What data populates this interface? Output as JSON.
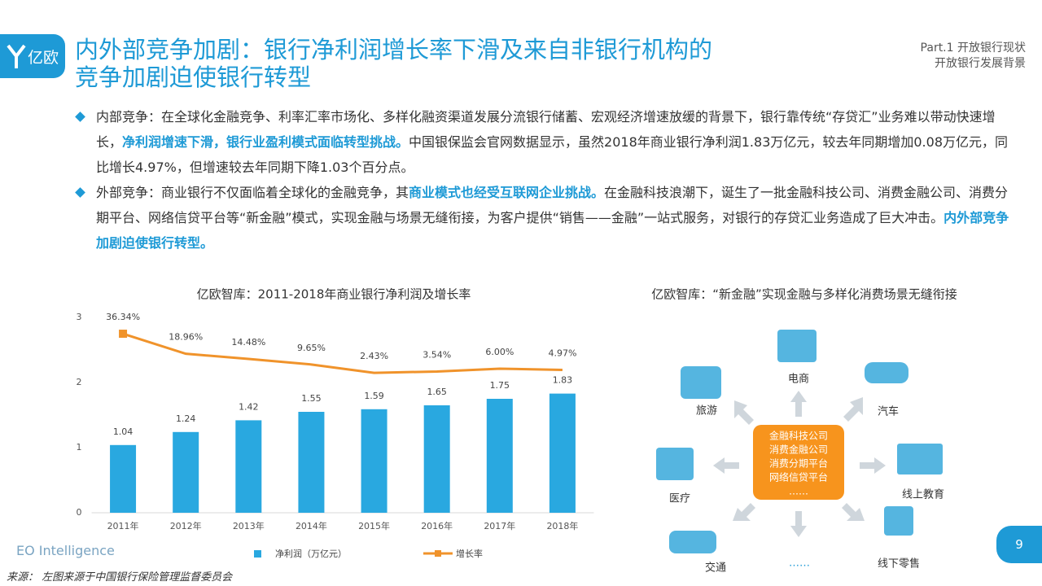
{
  "header": {
    "logo": "亿欧",
    "title_lines": [
      "内外部竞争加剧：银行净利润增长率下滑及来自非银行机构的",
      "竞争加剧迫使银行转型"
    ],
    "section_lines": [
      "Part.1 开放银行现状",
      "开放银行发展背景"
    ]
  },
  "bullets": [
    {
      "segments": [
        {
          "text": "内部竞争：在全球化金融竞争、利率汇率市场化、多样化融资渠道发展分流银行储蓄、宏观经济增速放缓的背景下，银行靠传统“存贷汇”业务难以带动快速增长，",
          "em": false
        },
        {
          "text": "净利润增速下滑，银行业盈利模式面临转型挑战。",
          "em": true
        },
        {
          "text": "中国银保监会官网数据显示，虽然2018年商业银行净利润1.83万亿元，较去年同期增加0.08万亿元，同比增长4.97%，但增速较去年同期下降1.03个百分点。",
          "em": false
        }
      ]
    },
    {
      "segments": [
        {
          "text": "外部竞争：商业银行不仅面临着全球化的金融竞争，其",
          "em": false
        },
        {
          "text": "商业模式也经受互联网企业挑战。",
          "em": true
        },
        {
          "text": "在金融科技浪潮下，诞生了一批金融科技公司、消费金融公司、消费分期平台、网络信贷平台等“新金融”模式，实现金融与场景无缝衔接，为客户提供“销售——金融”一站式服务，对银行的存贷汇业务造成了巨大冲击。",
          "em": false
        },
        {
          "text": "内外部竞争加剧迫使银行转型。",
          "em": true
        }
      ]
    }
  ],
  "chart_data": {
    "type": "bar",
    "title": "亿欧智库：2011-2018年商业银行净利润及增长率",
    "categories": [
      "2011年",
      "2012年",
      "2013年",
      "2014年",
      "2015年",
      "2016年",
      "2017年",
      "2018年"
    ],
    "series": [
      {
        "name": "净利润（万亿元）",
        "type": "bar",
        "color": "#29a8e0",
        "values": [
          1.04,
          1.24,
          1.42,
          1.55,
          1.59,
          1.65,
          1.75,
          1.83
        ]
      },
      {
        "name": "增长率",
        "type": "line",
        "axis": "y2",
        "color": "#f0932b",
        "values": [
          36.34,
          18.96,
          14.48,
          9.65,
          2.43,
          3.54,
          6.0,
          4.97
        ],
        "value_labels": [
          "36.34%",
          "18.96%",
          "14.48%",
          "9.65%",
          "2.43%",
          "3.54%",
          "6.00%",
          "4.97%"
        ]
      }
    ],
    "ylim": [
      0,
      3
    ],
    "yticks": [
      0,
      1,
      2,
      3
    ],
    "y2lim": [
      -119,
      50.5
    ],
    "grid": false,
    "legend": "bottom"
  },
  "diagram": {
    "title": "亿欧智库：“新金融”实现金融与多样化消费场景无缝衔接",
    "center_lines": [
      "金融科技公司",
      "消费金融公司",
      "消费分期平台",
      "网络信贷平台",
      "……"
    ],
    "nodes": [
      "电商",
      "汽车",
      "线上教育",
      "线下零售",
      "……",
      "交通",
      "医疗",
      "旅游"
    ]
  },
  "footer": {
    "brand": "EO Intelligence",
    "source": "来源：  左图来源于中国银行保险管理监督委员会",
    "page": "9"
  }
}
